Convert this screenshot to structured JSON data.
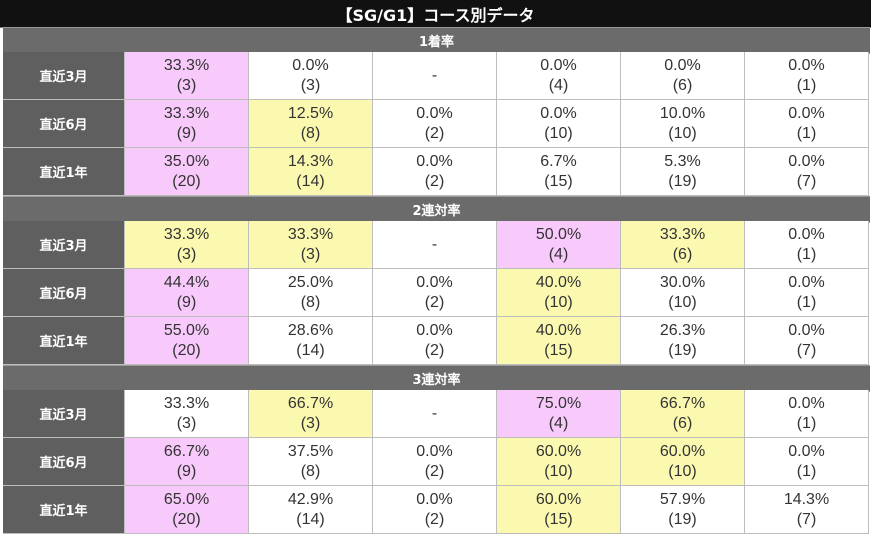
{
  "title": "【SG/G1】コース別データ",
  "colors": {
    "pink": "#f8c9fb",
    "yellow": "#fbf9b0",
    "header": "#111111",
    "section": "#6b6b6b",
    "label": "#5f5f5f"
  },
  "sections": [
    {
      "name": "1着率",
      "rows": [
        {
          "label": "直近3月",
          "cells": [
            {
              "pct": "33.3%",
              "count": "(3)",
              "hl": "pink"
            },
            {
              "pct": "0.0%",
              "count": "(3)",
              "hl": ""
            },
            {
              "pct": "-",
              "count": "",
              "hl": ""
            },
            {
              "pct": "0.0%",
              "count": "(4)",
              "hl": ""
            },
            {
              "pct": "0.0%",
              "count": "(6)",
              "hl": ""
            },
            {
              "pct": "0.0%",
              "count": "(1)",
              "hl": ""
            }
          ]
        },
        {
          "label": "直近6月",
          "cells": [
            {
              "pct": "33.3%",
              "count": "(9)",
              "hl": "pink"
            },
            {
              "pct": "12.5%",
              "count": "(8)",
              "hl": "yellow"
            },
            {
              "pct": "0.0%",
              "count": "(2)",
              "hl": ""
            },
            {
              "pct": "0.0%",
              "count": "(10)",
              "hl": ""
            },
            {
              "pct": "10.0%",
              "count": "(10)",
              "hl": ""
            },
            {
              "pct": "0.0%",
              "count": "(1)",
              "hl": ""
            }
          ]
        },
        {
          "label": "直近1年",
          "cells": [
            {
              "pct": "35.0%",
              "count": "(20)",
              "hl": "pink"
            },
            {
              "pct": "14.3%",
              "count": "(14)",
              "hl": "yellow"
            },
            {
              "pct": "0.0%",
              "count": "(2)",
              "hl": ""
            },
            {
              "pct": "6.7%",
              "count": "(15)",
              "hl": ""
            },
            {
              "pct": "5.3%",
              "count": "(19)",
              "hl": ""
            },
            {
              "pct": "0.0%",
              "count": "(7)",
              "hl": ""
            }
          ]
        }
      ]
    },
    {
      "name": "2連対率",
      "rows": [
        {
          "label": "直近3月",
          "cells": [
            {
              "pct": "33.3%",
              "count": "(3)",
              "hl": "yellow"
            },
            {
              "pct": "33.3%",
              "count": "(3)",
              "hl": "yellow"
            },
            {
              "pct": "-",
              "count": "",
              "hl": ""
            },
            {
              "pct": "50.0%",
              "count": "(4)",
              "hl": "pink"
            },
            {
              "pct": "33.3%",
              "count": "(6)",
              "hl": "yellow"
            },
            {
              "pct": "0.0%",
              "count": "(1)",
              "hl": ""
            }
          ]
        },
        {
          "label": "直近6月",
          "cells": [
            {
              "pct": "44.4%",
              "count": "(9)",
              "hl": "pink"
            },
            {
              "pct": "25.0%",
              "count": "(8)",
              "hl": ""
            },
            {
              "pct": "0.0%",
              "count": "(2)",
              "hl": ""
            },
            {
              "pct": "40.0%",
              "count": "(10)",
              "hl": "yellow"
            },
            {
              "pct": "30.0%",
              "count": "(10)",
              "hl": ""
            },
            {
              "pct": "0.0%",
              "count": "(1)",
              "hl": ""
            }
          ]
        },
        {
          "label": "直近1年",
          "cells": [
            {
              "pct": "55.0%",
              "count": "(20)",
              "hl": "pink"
            },
            {
              "pct": "28.6%",
              "count": "(14)",
              "hl": ""
            },
            {
              "pct": "0.0%",
              "count": "(2)",
              "hl": ""
            },
            {
              "pct": "40.0%",
              "count": "(15)",
              "hl": "yellow"
            },
            {
              "pct": "26.3%",
              "count": "(19)",
              "hl": ""
            },
            {
              "pct": "0.0%",
              "count": "(7)",
              "hl": ""
            }
          ]
        }
      ]
    },
    {
      "name": "3連対率",
      "rows": [
        {
          "label": "直近3月",
          "cells": [
            {
              "pct": "33.3%",
              "count": "(3)",
              "hl": ""
            },
            {
              "pct": "66.7%",
              "count": "(3)",
              "hl": "yellow"
            },
            {
              "pct": "-",
              "count": "",
              "hl": ""
            },
            {
              "pct": "75.0%",
              "count": "(4)",
              "hl": "pink"
            },
            {
              "pct": "66.7%",
              "count": "(6)",
              "hl": "yellow"
            },
            {
              "pct": "0.0%",
              "count": "(1)",
              "hl": ""
            }
          ]
        },
        {
          "label": "直近6月",
          "cells": [
            {
              "pct": "66.7%",
              "count": "(9)",
              "hl": "pink"
            },
            {
              "pct": "37.5%",
              "count": "(8)",
              "hl": ""
            },
            {
              "pct": "0.0%",
              "count": "(2)",
              "hl": ""
            },
            {
              "pct": "60.0%",
              "count": "(10)",
              "hl": "yellow"
            },
            {
              "pct": "60.0%",
              "count": "(10)",
              "hl": "yellow"
            },
            {
              "pct": "0.0%",
              "count": "(1)",
              "hl": ""
            }
          ]
        },
        {
          "label": "直近1年",
          "cells": [
            {
              "pct": "65.0%",
              "count": "(20)",
              "hl": "pink"
            },
            {
              "pct": "42.9%",
              "count": "(14)",
              "hl": ""
            },
            {
              "pct": "0.0%",
              "count": "(2)",
              "hl": ""
            },
            {
              "pct": "60.0%",
              "count": "(15)",
              "hl": "yellow"
            },
            {
              "pct": "57.9%",
              "count": "(19)",
              "hl": ""
            },
            {
              "pct": "14.3%",
              "count": "(7)",
              "hl": ""
            }
          ]
        }
      ]
    }
  ]
}
